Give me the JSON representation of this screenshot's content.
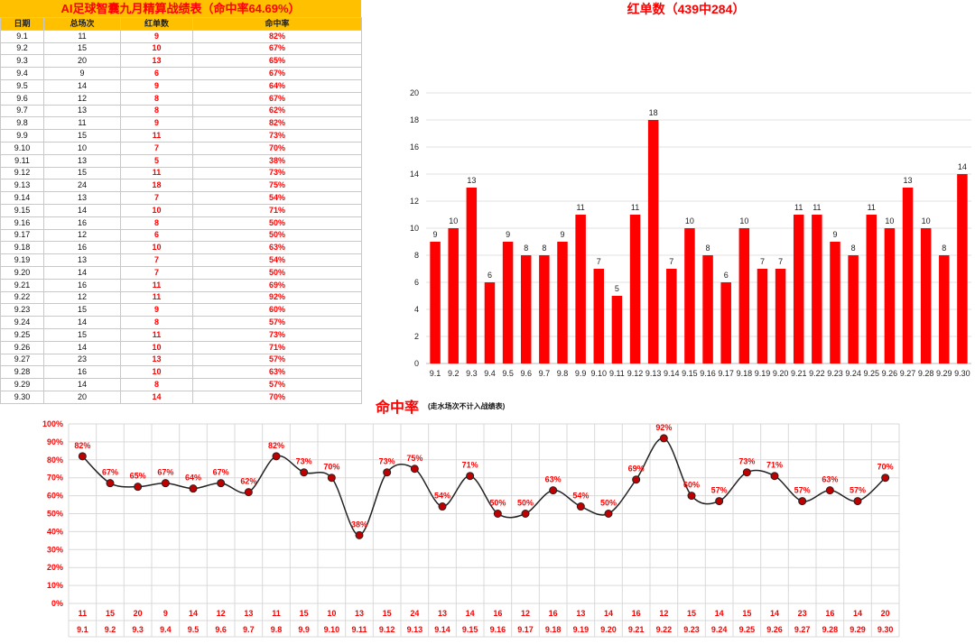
{
  "table": {
    "title": "AI足球智囊九月精算战绩表（命中率64.69%）",
    "headers": [
      "日期",
      "总场次",
      "红单数",
      "命中率"
    ],
    "rows": [
      [
        "9.1",
        "11",
        "9",
        "82%"
      ],
      [
        "9.2",
        "15",
        "10",
        "67%"
      ],
      [
        "9.3",
        "20",
        "13",
        "65%"
      ],
      [
        "9.4",
        "9",
        "6",
        "67%"
      ],
      [
        "9.5",
        "14",
        "9",
        "64%"
      ],
      [
        "9.6",
        "12",
        "8",
        "67%"
      ],
      [
        "9.7",
        "13",
        "8",
        "62%"
      ],
      [
        "9.8",
        "11",
        "9",
        "82%"
      ],
      [
        "9.9",
        "15",
        "11",
        "73%"
      ],
      [
        "9.10",
        "10",
        "7",
        "70%"
      ],
      [
        "9.11",
        "13",
        "5",
        "38%"
      ],
      [
        "9.12",
        "15",
        "11",
        "73%"
      ],
      [
        "9.13",
        "24",
        "18",
        "75%"
      ],
      [
        "9.14",
        "13",
        "7",
        "54%"
      ],
      [
        "9.15",
        "14",
        "10",
        "71%"
      ],
      [
        "9.16",
        "16",
        "8",
        "50%"
      ],
      [
        "9.17",
        "12",
        "6",
        "50%"
      ],
      [
        "9.18",
        "16",
        "10",
        "63%"
      ],
      [
        "9.19",
        "13",
        "7",
        "54%"
      ],
      [
        "9.20",
        "14",
        "7",
        "50%"
      ],
      [
        "9.21",
        "16",
        "11",
        "69%"
      ],
      [
        "9.22",
        "12",
        "11",
        "92%"
      ],
      [
        "9.23",
        "15",
        "9",
        "60%"
      ],
      [
        "9.24",
        "14",
        "8",
        "57%"
      ],
      [
        "9.25",
        "15",
        "11",
        "73%"
      ],
      [
        "9.26",
        "14",
        "10",
        "71%"
      ],
      [
        "9.27",
        "23",
        "13",
        "57%"
      ],
      [
        "9.28",
        "16",
        "10",
        "63%"
      ],
      [
        "9.29",
        "14",
        "8",
        "57%"
      ],
      [
        "9.30",
        "20",
        "14",
        "70%"
      ]
    ]
  },
  "chart_data": [
    {
      "type": "bar",
      "title": "红单数（439中284）",
      "categories": [
        "9.1",
        "9.2",
        "9.3",
        "9.4",
        "9.5",
        "9.6",
        "9.7",
        "9.8",
        "9.9",
        "9.10",
        "9.11",
        "9.12",
        "9.13",
        "9.14",
        "9.15",
        "9.16",
        "9.17",
        "9.18",
        "9.19",
        "9.20",
        "9.21",
        "9.22",
        "9.23",
        "9.24",
        "9.25",
        "9.26",
        "9.27",
        "9.28",
        "9.29",
        "9.30"
      ],
      "values": [
        9,
        10,
        13,
        6,
        9,
        8,
        8,
        9,
        11,
        7,
        5,
        11,
        18,
        7,
        10,
        8,
        6,
        10,
        7,
        7,
        11,
        11,
        9,
        8,
        11,
        10,
        13,
        10,
        8,
        14
      ],
      "ylim": [
        0,
        20
      ],
      "yticks": [
        0,
        2,
        4,
        6,
        8,
        10,
        12,
        14,
        16,
        18,
        20
      ],
      "color": "#ff0000",
      "grid": true
    },
    {
      "type": "line",
      "title": "命中率",
      "subtitle": "(走水场次不计入战绩表)",
      "categories": [
        "9.1",
        "9.2",
        "9.3",
        "9.4",
        "9.5",
        "9.6",
        "9.7",
        "9.8",
        "9.9",
        "9.10",
        "9.11",
        "9.12",
        "9.13",
        "9.14",
        "9.15",
        "9.16",
        "9.17",
        "9.18",
        "9.19",
        "9.20",
        "9.21",
        "9.22",
        "9.23",
        "9.24",
        "9.25",
        "9.26",
        "9.27",
        "9.28",
        "9.29",
        "9.30"
      ],
      "totals": [
        "11",
        "15",
        "20",
        "9",
        "14",
        "12",
        "13",
        "11",
        "15",
        "10",
        "13",
        "15",
        "24",
        "13",
        "14",
        "16",
        "12",
        "16",
        "13",
        "14",
        "16",
        "12",
        "15",
        "14",
        "15",
        "14",
        "23",
        "16",
        "14",
        "20"
      ],
      "values": [
        82,
        67,
        65,
        67,
        64,
        67,
        62,
        82,
        73,
        70,
        38,
        73,
        75,
        54,
        71,
        50,
        50,
        63,
        54,
        50,
        69,
        92,
        60,
        57,
        73,
        71,
        57,
        63,
        57,
        70
      ],
      "ylim": [
        0,
        100
      ],
      "yticks": [
        "0%",
        "10%",
        "20%",
        "30%",
        "40%",
        "50%",
        "60%",
        "70%",
        "80%",
        "90%",
        "100%"
      ],
      "line_color": "#222222",
      "marker_color": "#c00000",
      "label_color": "#ff0000",
      "grid": true
    }
  ]
}
